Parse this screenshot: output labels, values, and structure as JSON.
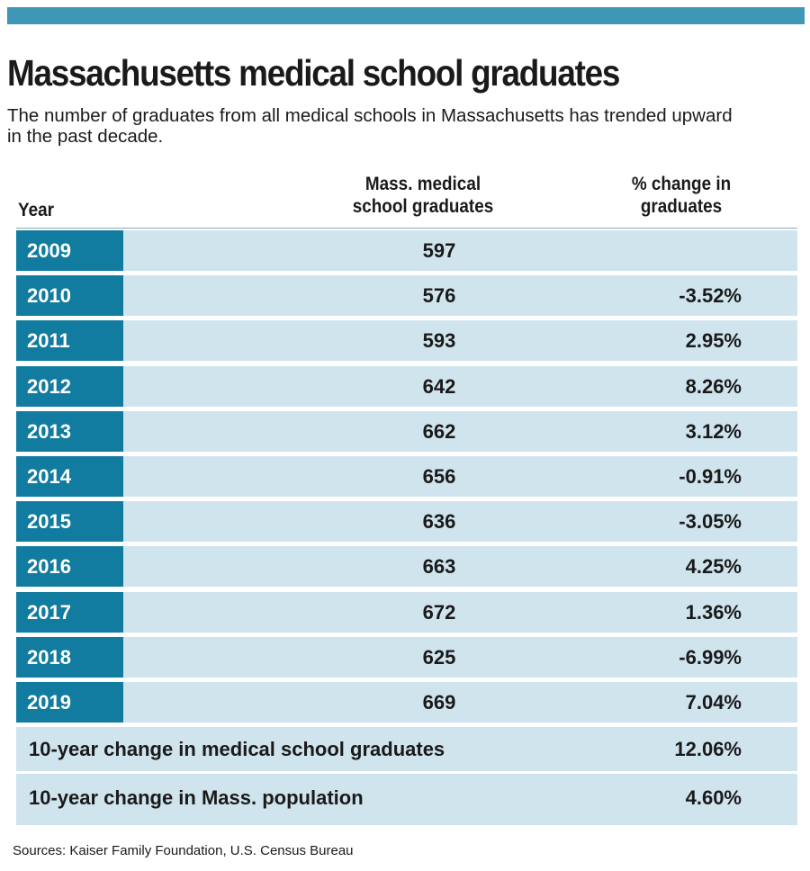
{
  "header": {
    "title": "Massachusetts medical school graduates",
    "subtitle": "The number of graduates from all medical schools in Massachusetts has trended upward in the past decade."
  },
  "columns": {
    "year": "Year",
    "grads_line1": "Mass. medical",
    "grads_line2": "school graduates",
    "pct_line1": "% change in",
    "pct_line2": "graduates"
  },
  "chart_data": {
    "type": "table",
    "title": "Massachusetts medical school graduates",
    "columns": [
      "Year",
      "Mass. medical school graduates",
      "% change in graduates"
    ],
    "rows": [
      {
        "year": "2009",
        "graduates": "597",
        "pct_change": ""
      },
      {
        "year": "2010",
        "graduates": "576",
        "pct_change": "-3.52%"
      },
      {
        "year": "2011",
        "graduates": "593",
        "pct_change": "2.95%"
      },
      {
        "year": "2012",
        "graduates": "642",
        "pct_change": "8.26%"
      },
      {
        "year": "2013",
        "graduates": "662",
        "pct_change": "3.12%"
      },
      {
        "year": "2014",
        "graduates": "656",
        "pct_change": "-0.91%"
      },
      {
        "year": "2015",
        "graduates": "636",
        "pct_change": "-3.05%"
      },
      {
        "year": "2016",
        "graduates": "663",
        "pct_change": "4.25%"
      },
      {
        "year": "2017",
        "graduates": "672",
        "pct_change": "1.36%"
      },
      {
        "year": "2018",
        "graduates": "625",
        "pct_change": "-6.99%"
      },
      {
        "year": "2019",
        "graduates": "669",
        "pct_change": "7.04%"
      }
    ],
    "summary": [
      {
        "label": "10-year change in medical school graduates",
        "value": "12.06%"
      },
      {
        "label": "10-year change in Mass. population",
        "value": "4.60%"
      }
    ]
  },
  "footer": {
    "sources": "Sources: Kaiser Family Foundation, U.S. Census Bureau"
  },
  "colors": {
    "accent_bar": "#3f97b8",
    "year_cell": "#117c9f",
    "row_background": "#d0e4ee"
  }
}
